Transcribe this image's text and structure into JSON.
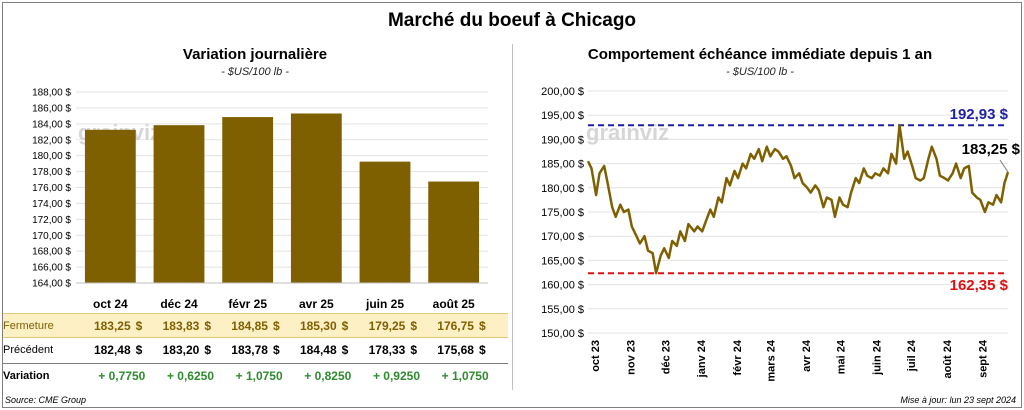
{
  "title": "Marché du boeuf à Chicago",
  "left_panel": {
    "title": "Variation  journalière",
    "subtitle": "- $US/100 lb -"
  },
  "right_panel": {
    "title": "Comportement  échéance immédiate depuis 1 an",
    "subtitle": "- $US/100 lb -"
  },
  "watermark": "grainviz",
  "chart_data": [
    {
      "type": "bar",
      "categories": [
        "oct 24",
        "déc 24",
        "févr 25",
        "avr 25",
        "juin 25",
        "août 25"
      ],
      "values": [
        183.25,
        183.83,
        184.85,
        185.3,
        179.25,
        176.75
      ],
      "ylim": [
        164,
        188
      ],
      "yticks": [
        "164,00 $",
        "166,00 $",
        "168,00 $",
        "170,00 $",
        "172,00 $",
        "174,00 $",
        "176,00 $",
        "178,00 $",
        "180,00 $",
        "182,00 $",
        "184,00 $",
        "186,00 $",
        "188,00 $"
      ],
      "bar_color": "#7f6000",
      "grid": true
    },
    {
      "type": "line",
      "ylim": [
        150,
        200
      ],
      "yticks": [
        "150,00 $",
        "155,00 $",
        "160,00 $",
        "165,00 $",
        "170,00 $",
        "175,00 $",
        "180,00 $",
        "185,00 $",
        "190,00 $",
        "195,00 $",
        "200,00 $"
      ],
      "xticks": [
        "oct 23",
        "nov 23",
        "déc 23",
        "janv 24",
        "févr 24",
        "mars 24",
        "avr 24",
        "mai 24",
        "juin 24",
        "juil 24",
        "août 24",
        "sept 24"
      ],
      "x": [
        "2023-09-25",
        "2023-09-28",
        "2023-10-02",
        "2023-10-05",
        "2023-10-09",
        "2023-10-12",
        "2023-10-16",
        "2023-10-19",
        "2023-10-23",
        "2023-10-26",
        "2023-10-30",
        "2023-11-02",
        "2023-11-06",
        "2023-11-09",
        "2023-11-13",
        "2023-11-16",
        "2023-11-20",
        "2023-11-23",
        "2023-11-27",
        "2023-11-30",
        "2023-12-04",
        "2023-12-07",
        "2023-12-11",
        "2023-12-14",
        "2023-12-18",
        "2023-12-21",
        "2023-12-26",
        "2023-12-29",
        "2024-01-02",
        "2024-01-05",
        "2024-01-09",
        "2024-01-12",
        "2024-01-16",
        "2024-01-19",
        "2024-01-23",
        "2024-01-26",
        "2024-01-30",
        "2024-02-02",
        "2024-02-06",
        "2024-02-09",
        "2024-02-13",
        "2024-02-16",
        "2024-02-20",
        "2024-02-23",
        "2024-02-27",
        "2024-03-01",
        "2024-03-05",
        "2024-03-08",
        "2024-03-12",
        "2024-03-15",
        "2024-03-19",
        "2024-03-22",
        "2024-03-26",
        "2024-03-29",
        "2024-04-02",
        "2024-04-05",
        "2024-04-09",
        "2024-04-12",
        "2024-04-16",
        "2024-04-19",
        "2024-04-23",
        "2024-04-26",
        "2024-04-30",
        "2024-05-03",
        "2024-05-07",
        "2024-05-10",
        "2024-05-14",
        "2024-05-17",
        "2024-05-21",
        "2024-05-24",
        "2024-05-28",
        "2024-05-31",
        "2024-06-04",
        "2024-06-07",
        "2024-06-11",
        "2024-06-14",
        "2024-06-18",
        "2024-06-21",
        "2024-06-25",
        "2024-06-28",
        "2024-07-02",
        "2024-07-05",
        "2024-07-09",
        "2024-07-12",
        "2024-07-16",
        "2024-07-19",
        "2024-07-23",
        "2024-07-26",
        "2024-07-30",
        "2024-08-02",
        "2024-08-06",
        "2024-08-09",
        "2024-08-13",
        "2024-08-16",
        "2024-08-20",
        "2024-08-23",
        "2024-08-27",
        "2024-08-30",
        "2024-09-03",
        "2024-09-06",
        "2024-09-10",
        "2024-09-13",
        "2024-09-17",
        "2024-09-20",
        "2024-09-23"
      ],
      "y": [
        185.5,
        184.0,
        178.5,
        183.0,
        184.5,
        181.0,
        176.0,
        174.0,
        176.5,
        175.0,
        175.5,
        172.0,
        170.0,
        168.5,
        170.0,
        167.0,
        166.5,
        162.35,
        166.0,
        167.5,
        165.5,
        169.0,
        168.0,
        171.0,
        169.0,
        172.5,
        171.0,
        172.0,
        171.0,
        173.0,
        175.5,
        174.0,
        178.0,
        177.0,
        182.0,
        180.5,
        183.5,
        182.0,
        185.0,
        184.0,
        187.0,
        186.0,
        188.0,
        185.5,
        188.5,
        186.5,
        188.0,
        187.5,
        186.0,
        186.5,
        184.5,
        182.0,
        183.0,
        181.0,
        180.0,
        179.0,
        180.5,
        179.5,
        176.0,
        178.0,
        177.5,
        174.0,
        178.0,
        176.5,
        176.0,
        179.0,
        182.0,
        181.0,
        184.0,
        182.5,
        182.0,
        183.0,
        182.5,
        184.0,
        183.0,
        187.0,
        185.0,
        192.93,
        186.0,
        187.5,
        184.5,
        182.0,
        181.5,
        182.0,
        186.0,
        188.5,
        186.0,
        182.5,
        182.0,
        181.5,
        183.0,
        185.0,
        182.0,
        184.0,
        184.5,
        179.0,
        178.0,
        177.5,
        175.0,
        177.0,
        176.5,
        178.5,
        177.0,
        181.0,
        183.25
      ],
      "max_line": {
        "value": 192.93,
        "label": "192,93 $",
        "color": "#1f1fa8"
      },
      "min_line": {
        "value": 162.35,
        "label": "162,35 $",
        "color": "#e01010"
      },
      "last_label": "183,25 $",
      "line_color": "#7f6000",
      "grid": true
    }
  ],
  "table": {
    "rows": [
      {
        "label": "Fermeture",
        "values": [
          "183,25",
          "183,83",
          "184,85",
          "185,30",
          "179,25",
          "176,75"
        ],
        "currency": "$"
      },
      {
        "label": "Précédent",
        "values": [
          "182,48",
          "183,20",
          "183,78",
          "184,48",
          "178,33",
          "175,68"
        ],
        "currency": "$"
      },
      {
        "label": "Variation",
        "values": [
          "+ 0,7750",
          "+ 0,6250",
          "+ 1,0750",
          "+ 0,8250",
          "+ 0,9250",
          "+ 1,0750"
        ],
        "currency": ""
      }
    ]
  },
  "footer": {
    "source": "Source: CME Group",
    "updated": "Mise à jour: lun 23 sept 2024"
  }
}
